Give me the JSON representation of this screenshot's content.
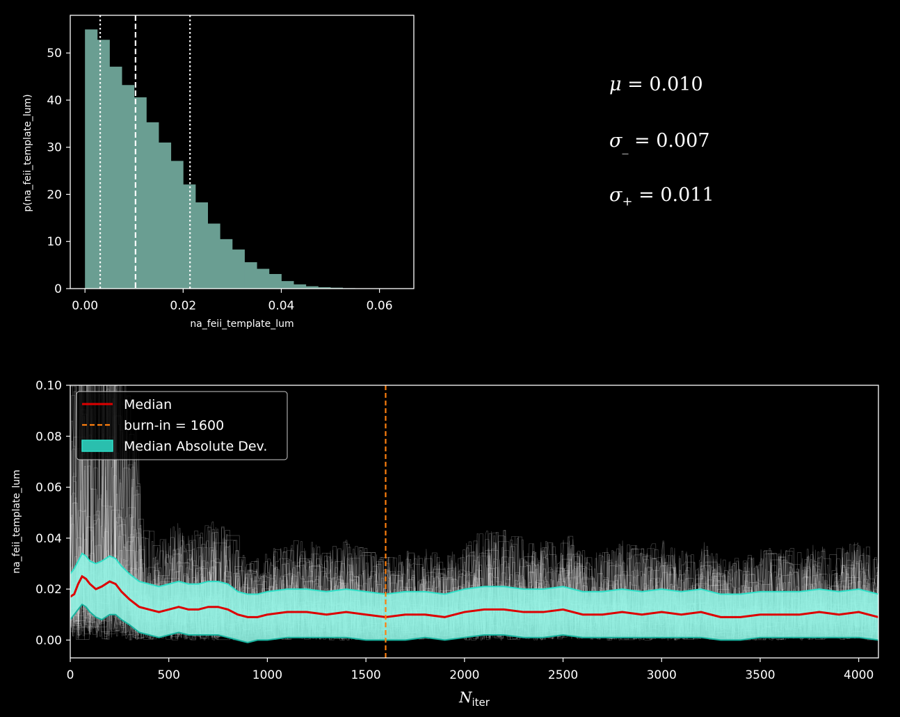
{
  "colors": {
    "background": "#000000",
    "axes": "#ffffff",
    "hist_fill": "#6a9e92",
    "median": "#dd0000",
    "burnin": "#ff7f0e",
    "mad_fill": "#8ff2e2",
    "mad_edge": "#2de0c8",
    "chains": "#ffffff"
  },
  "stats": {
    "mu_symbol": "μ",
    "mu_value": "= 0.010",
    "sigma_minus_symbol": "σ",
    "sigma_minus_sub": "_",
    "sigma_minus_value": "= 0.007",
    "sigma_plus_symbol": "σ",
    "sigma_plus_sub": "+",
    "sigma_plus_value": "= 0.011"
  },
  "chart_data": [
    {
      "type": "bar",
      "title": "",
      "xlabel": "na_feii_template_lum",
      "ylabel": "p(na_feii_template_lum)",
      "xlim": [
        -0.003,
        0.067
      ],
      "ylim": [
        0,
        58
      ],
      "xticks": [
        0.0,
        0.02,
        0.04,
        0.06
      ],
      "xtick_labels": [
        "0.00",
        "0.02",
        "0.04",
        "0.06"
      ],
      "yticks": [
        0,
        10,
        20,
        30,
        40,
        50
      ],
      "ytick_labels": [
        "0",
        "10",
        "20",
        "30",
        "40",
        "50"
      ],
      "bin_start": 0.0,
      "bin_width": 0.0025,
      "values": [
        55,
        52.8,
        47.1,
        43.2,
        40.6,
        35.3,
        31.0,
        27.1,
        22.1,
        18.3,
        13.8,
        10.5,
        8.3,
        5.6,
        4.2,
        3.1,
        1.6,
        0.9,
        0.5,
        0.3,
        0.2,
        0.1,
        0.05,
        0.03,
        0.02,
        0.01
      ],
      "vlines": [
        {
          "x": 0.0103,
          "style": "dashed",
          "label": "median"
        },
        {
          "x": 0.0031,
          "style": "dotted",
          "label": "lower"
        },
        {
          "x": 0.0214,
          "style": "dotted",
          "label": "upper"
        }
      ]
    },
    {
      "type": "line",
      "title": "",
      "xlabel_main": "N",
      "xlabel_sub": "iter",
      "ylabel": "na_feii_template_lum",
      "xlim": [
        0,
        4100
      ],
      "ylim": [
        -0.007,
        0.1
      ],
      "xticks": [
        0,
        500,
        1000,
        1500,
        2000,
        2500,
        3000,
        3500,
        4000
      ],
      "xtick_labels": [
        "0",
        "500",
        "1000",
        "1500",
        "2000",
        "2500",
        "3000",
        "3500",
        "4000"
      ],
      "yticks": [
        0.0,
        0.02,
        0.04,
        0.06,
        0.08,
        0.1
      ],
      "ytick_labels": [
        "0.00",
        "0.02",
        "0.04",
        "0.06",
        "0.08",
        "0.10"
      ],
      "burn_in": 1600,
      "legend": [
        "Median",
        "burn-in = 1600",
        "Median Absolute Dev."
      ],
      "legend_position": "upper-left",
      "median": {
        "x": [
          0,
          20,
          40,
          60,
          80,
          100,
          130,
          160,
          200,
          230,
          260,
          300,
          350,
          400,
          450,
          500,
          550,
          600,
          650,
          700,
          750,
          800,
          850,
          900,
          950,
          1000,
          1100,
          1200,
          1300,
          1400,
          1500,
          1600,
          1700,
          1800,
          1900,
          2000,
          2100,
          2200,
          2300,
          2400,
          2500,
          2600,
          2700,
          2800,
          2900,
          3000,
          3100,
          3200,
          3300,
          3400,
          3500,
          3600,
          3700,
          3800,
          3900,
          4000,
          4100
        ],
        "y": [
          0.017,
          0.018,
          0.022,
          0.025,
          0.024,
          0.022,
          0.02,
          0.021,
          0.023,
          0.022,
          0.019,
          0.016,
          0.013,
          0.012,
          0.011,
          0.012,
          0.013,
          0.012,
          0.012,
          0.013,
          0.013,
          0.012,
          0.01,
          0.009,
          0.009,
          0.01,
          0.011,
          0.011,
          0.01,
          0.011,
          0.01,
          0.009,
          0.01,
          0.01,
          0.009,
          0.011,
          0.012,
          0.012,
          0.011,
          0.011,
          0.012,
          0.01,
          0.01,
          0.011,
          0.01,
          0.011,
          0.01,
          0.011,
          0.009,
          0.009,
          0.01,
          0.01,
          0.01,
          0.011,
          0.01,
          0.011,
          0.009
        ]
      },
      "mad_upper": [
        0.026,
        0.028,
        0.031,
        0.034,
        0.033,
        0.031,
        0.03,
        0.031,
        0.033,
        0.032,
        0.029,
        0.026,
        0.023,
        0.022,
        0.021,
        0.022,
        0.023,
        0.022,
        0.022,
        0.023,
        0.023,
        0.022,
        0.019,
        0.018,
        0.018,
        0.019,
        0.02,
        0.02,
        0.019,
        0.02,
        0.019,
        0.018,
        0.019,
        0.019,
        0.018,
        0.02,
        0.021,
        0.021,
        0.02,
        0.02,
        0.021,
        0.019,
        0.019,
        0.02,
        0.019,
        0.02,
        0.019,
        0.02,
        0.018,
        0.018,
        0.019,
        0.019,
        0.019,
        0.02,
        0.019,
        0.02,
        0.018
      ],
      "mad_lower": [
        0.008,
        0.01,
        0.012,
        0.014,
        0.013,
        0.011,
        0.009,
        0.008,
        0.01,
        0.01,
        0.008,
        0.006,
        0.003,
        0.002,
        0.001,
        0.002,
        0.003,
        0.002,
        0.002,
        0.002,
        0.002,
        0.001,
        0.0,
        -0.001,
        0.0,
        0.0,
        0.001,
        0.001,
        0.001,
        0.001,
        0.0,
        0.0,
        0.0,
        0.001,
        0.0,
        0.001,
        0.002,
        0.002,
        0.001,
        0.001,
        0.002,
        0.001,
        0.001,
        0.001,
        0.001,
        0.001,
        0.001,
        0.001,
        0.0,
        0.0,
        0.001,
        0.001,
        0.001,
        0.001,
        0.001,
        0.001,
        0.0
      ]
    }
  ]
}
